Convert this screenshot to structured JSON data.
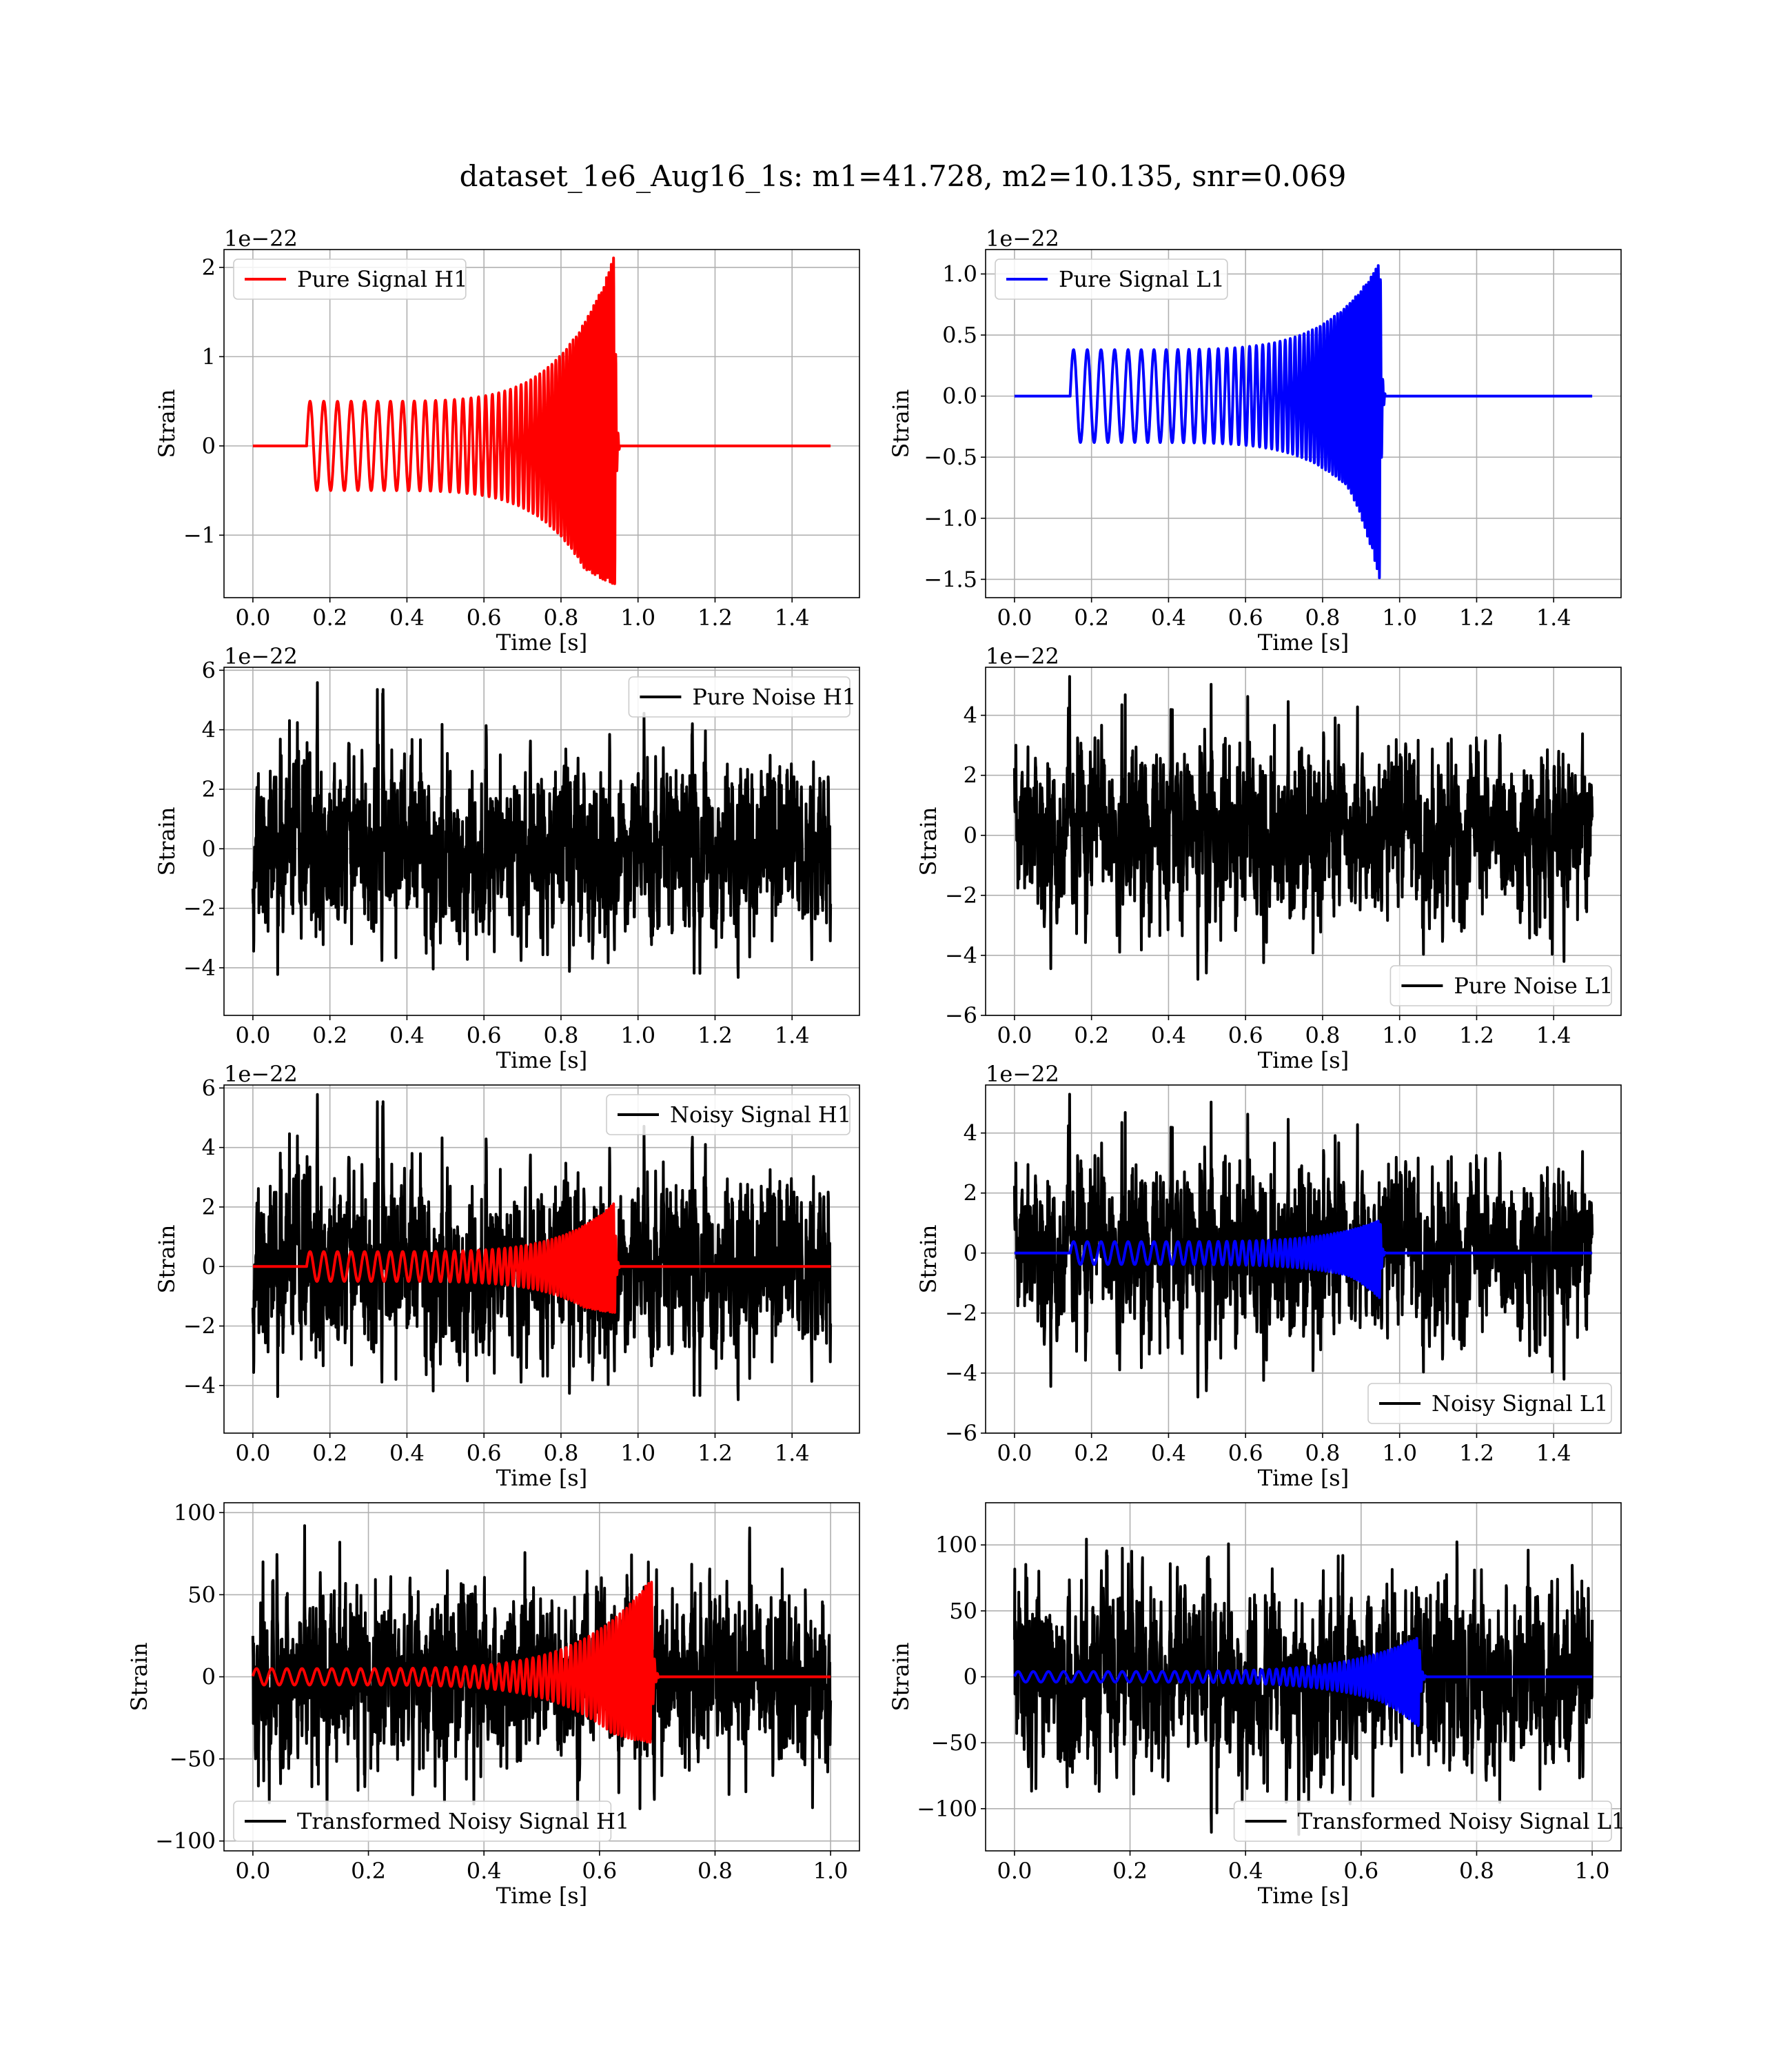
{
  "figure": {
    "title": "dataset_1e6_Aug16_1s: m1=41.728, m2=10.135, snr=0.069"
  },
  "chart_data": [
    {
      "type": "line",
      "id": "p1",
      "xlabel": "Time [s]",
      "ylabel": "Strain",
      "offset_text": "1e−22",
      "xlim": [
        -0.075,
        1.575
      ],
      "ylim": [
        -1.7,
        2.2
      ],
      "xticks": [
        0.0,
        0.2,
        0.4,
        0.6,
        0.8,
        1.0,
        1.2,
        1.4
      ],
      "xtick_labels": [
        "0.0",
        "0.2",
        "0.4",
        "0.6",
        "0.8",
        "1.0",
        "1.2",
        "1.4"
      ],
      "yticks": [
        -1,
        0,
        1,
        2
      ],
      "ytick_labels": [
        "−1",
        "0",
        "1",
        "2"
      ],
      "grid": true,
      "legend": {
        "position": "upper-left",
        "entries": [
          {
            "label": "Pure Signal H1",
            "color": "#ff0000"
          }
        ]
      },
      "series": [
        {
          "name": "Pure Signal H1",
          "color": "#ff0000",
          "kind": "chirp",
          "x_start": 0.0,
          "x_end": 1.5,
          "t_on": 0.14,
          "t_merge": 0.94,
          "amp_start": 0.5,
          "amp_peak": 2.15,
          "amp_neg_peak": -1.55,
          "freq_start": 28,
          "freq_end": 170
        }
      ]
    },
    {
      "type": "line",
      "id": "p2",
      "xlabel": "Time [s]",
      "ylabel": "Strain",
      "offset_text": "1e−22",
      "xlim": [
        -0.075,
        1.575
      ],
      "ylim": [
        -1.65,
        1.2
      ],
      "xticks": [
        0.0,
        0.2,
        0.4,
        0.6,
        0.8,
        1.0,
        1.2,
        1.4
      ],
      "xtick_labels": [
        "0.0",
        "0.2",
        "0.4",
        "0.6",
        "0.8",
        "1.0",
        "1.2",
        "1.4"
      ],
      "yticks": [
        -1.5,
        -1.0,
        -0.5,
        0.0,
        0.5,
        1.0
      ],
      "ytick_labels": [
        "−1.5",
        "−1.0",
        "−0.5",
        "0.0",
        "0.5",
        "1.0"
      ],
      "grid": true,
      "legend": {
        "position": "upper-left",
        "entries": [
          {
            "label": "Pure Signal L1",
            "color": "#0000ff"
          }
        ]
      },
      "series": [
        {
          "name": "Pure Signal L1",
          "color": "#0000ff",
          "kind": "chirp",
          "x_start": 0.0,
          "x_end": 1.5,
          "t_on": 0.145,
          "t_merge": 0.95,
          "amp_start": 0.38,
          "amp_peak": 1.1,
          "amp_neg_peak": -1.52,
          "freq_start": 28,
          "freq_end": 170
        }
      ]
    },
    {
      "type": "line",
      "id": "p3",
      "xlabel": "Time [s]",
      "ylabel": "Strain",
      "offset_text": "1e−22",
      "xlim": [
        -0.075,
        1.575
      ],
      "ylim": [
        -5.6,
        6.1
      ],
      "xticks": [
        0.0,
        0.2,
        0.4,
        0.6,
        0.8,
        1.0,
        1.2,
        1.4
      ],
      "xtick_labels": [
        "0.0",
        "0.2",
        "0.4",
        "0.6",
        "0.8",
        "1.0",
        "1.2",
        "1.4"
      ],
      "yticks": [
        -4,
        -2,
        0,
        2,
        4,
        6
      ],
      "ytick_labels": [
        "−4",
        "−2",
        "0",
        "2",
        "4",
        "6"
      ],
      "grid": true,
      "legend": {
        "position": "upper-right",
        "entries": [
          {
            "label": "Pure Noise H1",
            "color": "#000000"
          }
        ]
      },
      "series": [
        {
          "name": "Pure Noise H1",
          "color": "#000000",
          "kind": "noise",
          "x_start": 0.0,
          "x_end": 1.5,
          "max": 5.7,
          "min": -5.1,
          "sigma": 1.55,
          "seed": 11
        }
      ]
    },
    {
      "type": "line",
      "id": "p4",
      "xlabel": "Time [s]",
      "ylabel": "Strain",
      "offset_text": "1e−22",
      "xlim": [
        -0.075,
        1.575
      ],
      "ylim": [
        -6.0,
        5.6
      ],
      "xticks": [
        0.0,
        0.2,
        0.4,
        0.6,
        0.8,
        1.0,
        1.2,
        1.4
      ],
      "xtick_labels": [
        "0.0",
        "0.2",
        "0.4",
        "0.6",
        "0.8",
        "1.0",
        "1.2",
        "1.4"
      ],
      "yticks": [
        -6,
        -4,
        -2,
        0,
        2,
        4
      ],
      "ytick_labels": [
        "−6",
        "−4",
        "−2",
        "0",
        "2",
        "4"
      ],
      "grid": true,
      "legend": {
        "position": "lower-right",
        "entries": [
          {
            "label": "Pure Noise L1",
            "color": "#000000"
          }
        ]
      },
      "series": [
        {
          "name": "Pure Noise L1",
          "color": "#000000",
          "kind": "noise",
          "x_start": 0.0,
          "x_end": 1.5,
          "max": 5.4,
          "min": -5.7,
          "sigma": 1.45,
          "seed": 23
        }
      ]
    },
    {
      "type": "line",
      "id": "p5",
      "xlabel": "Time [s]",
      "ylabel": "Strain",
      "offset_text": "1e−22",
      "xlim": [
        -0.075,
        1.575
      ],
      "ylim": [
        -5.6,
        6.1
      ],
      "xticks": [
        0.0,
        0.2,
        0.4,
        0.6,
        0.8,
        1.0,
        1.2,
        1.4
      ],
      "xtick_labels": [
        "0.0",
        "0.2",
        "0.4",
        "0.6",
        "0.8",
        "1.0",
        "1.2",
        "1.4"
      ],
      "yticks": [
        -4,
        -2,
        0,
        2,
        4,
        6
      ],
      "ytick_labels": [
        "−4",
        "−2",
        "0",
        "2",
        "4",
        "6"
      ],
      "grid": true,
      "legend": {
        "position": "upper-right",
        "entries": [
          {
            "label": "Noisy Signal H1",
            "color": "#000000"
          }
        ]
      },
      "series": [
        {
          "name": "Noisy Signal H1",
          "color": "#000000",
          "kind": "noise",
          "x_start": 0.0,
          "x_end": 1.5,
          "max": 5.9,
          "min": -5.1,
          "sigma": 1.55,
          "seed": 11
        },
        {
          "color": "#ff0000",
          "kind": "chirp",
          "x_start": 0.0,
          "x_end": 1.5,
          "t_on": 0.14,
          "t_merge": 0.94,
          "amp_start": 0.5,
          "amp_peak": 2.15,
          "amp_neg_peak": -1.55,
          "freq_start": 28,
          "freq_end": 170
        }
      ]
    },
    {
      "type": "line",
      "id": "p6",
      "xlabel": "Time [s]",
      "ylabel": "Strain",
      "offset_text": "1e−22",
      "xlim": [
        -0.075,
        1.575
      ],
      "ylim": [
        -6.0,
        5.6
      ],
      "xticks": [
        0.0,
        0.2,
        0.4,
        0.6,
        0.8,
        1.0,
        1.2,
        1.4
      ],
      "xtick_labels": [
        "0.0",
        "0.2",
        "0.4",
        "0.6",
        "0.8",
        "1.0",
        "1.2",
        "1.4"
      ],
      "yticks": [
        -6,
        -4,
        -2,
        0,
        2,
        4
      ],
      "ytick_labels": [
        "−6",
        "−4",
        "−2",
        "0",
        "2",
        "4"
      ],
      "grid": true,
      "legend": {
        "position": "lower-right",
        "entries": [
          {
            "label": "Noisy Signal L1",
            "color": "#000000"
          }
        ]
      },
      "series": [
        {
          "name": "Noisy Signal L1",
          "color": "#000000",
          "kind": "noise",
          "x_start": 0.0,
          "x_end": 1.5,
          "max": 5.4,
          "min": -5.7,
          "sigma": 1.45,
          "seed": 23
        },
        {
          "color": "#0000ff",
          "kind": "chirp",
          "x_start": 0.0,
          "x_end": 1.5,
          "t_on": 0.145,
          "t_merge": 0.95,
          "amp_start": 0.38,
          "amp_peak": 1.1,
          "amp_neg_peak": -1.52,
          "freq_start": 28,
          "freq_end": 170
        }
      ]
    },
    {
      "type": "line",
      "id": "p7",
      "xlabel": "Time [s]",
      "ylabel": "Strain",
      "offset_text": "",
      "xlim": [
        -0.05,
        1.05
      ],
      "ylim": [
        -106,
        106
      ],
      "xticks": [
        0.0,
        0.2,
        0.4,
        0.6,
        0.8,
        1.0
      ],
      "xtick_labels": [
        "0.0",
        "0.2",
        "0.4",
        "0.6",
        "0.8",
        "1.0"
      ],
      "yticks": [
        -100,
        -50,
        0,
        50,
        100
      ],
      "ytick_labels": [
        "−100",
        "−50",
        "0",
        "50",
        "100"
      ],
      "grid": true,
      "legend": {
        "position": "lower-left",
        "entries": [
          {
            "label": "Transformed Noisy Signal H1",
            "color": "#000000"
          }
        ]
      },
      "series": [
        {
          "name": "Transformed Noisy Signal H1",
          "color": "#000000",
          "kind": "noise",
          "x_start": 0.0,
          "x_end": 1.0,
          "max": 98,
          "min": -92,
          "sigma": 28,
          "seed": 37
        },
        {
          "color": "#ff0000",
          "kind": "chirp",
          "x_start": 0.0,
          "x_end": 1.0,
          "t_on": 0.0,
          "t_merge": 0.69,
          "amp_start": 5,
          "amp_peak": 60,
          "amp_neg_peak": -40,
          "freq_start": 38,
          "freq_end": 200
        }
      ]
    },
    {
      "type": "line",
      "id": "p8",
      "xlabel": "Time [s]",
      "ylabel": "Strain",
      "offset_text": "",
      "xlim": [
        -0.05,
        1.05
      ],
      "ylim": [
        -132,
        132
      ],
      "xticks": [
        0.0,
        0.2,
        0.4,
        0.6,
        0.8,
        1.0
      ],
      "xtick_labels": [
        "0.0",
        "0.2",
        "0.4",
        "0.6",
        "0.8",
        "1.0"
      ],
      "yticks": [
        -100,
        -50,
        0,
        50,
        100
      ],
      "ytick_labels": [
        "−100",
        "−50",
        "0",
        "50",
        "100"
      ],
      "grid": true,
      "legend": {
        "position": "lower-right",
        "entries": [
          {
            "label": "Transformed Noisy Signal L1",
            "color": "#000000"
          }
        ]
      },
      "series": [
        {
          "name": "Transformed Noisy Signal L1",
          "color": "#000000",
          "kind": "noise",
          "x_start": 0.0,
          "x_end": 1.0,
          "max": 118,
          "min": -122,
          "sigma": 27,
          "seed": 53
        },
        {
          "color": "#0000ff",
          "kind": "chirp",
          "x_start": 0.0,
          "x_end": 1.0,
          "t_on": 0.0,
          "t_merge": 0.7,
          "amp_start": 4,
          "amp_peak": 30,
          "amp_neg_peak": -38,
          "freq_start": 38,
          "freq_end": 200
        }
      ]
    }
  ]
}
